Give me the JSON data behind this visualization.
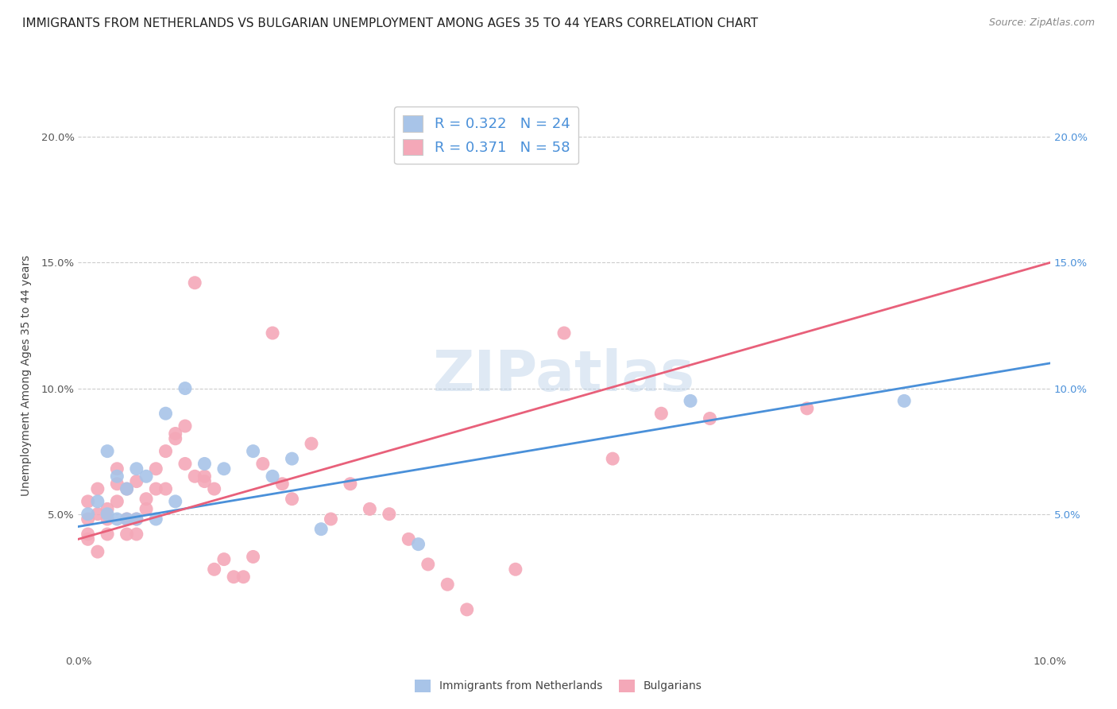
{
  "title": "IMMIGRANTS FROM NETHERLANDS VS BULGARIAN UNEMPLOYMENT AMONG AGES 35 TO 44 YEARS CORRELATION CHART",
  "source": "Source: ZipAtlas.com",
  "ylabel": "Unemployment Among Ages 35 to 44 years",
  "xlim": [
    0.0,
    0.1
  ],
  "ylim": [
    -0.01,
    0.22
  ],
  "plot_ylim": [
    -0.005,
    0.215
  ],
  "xticks": [
    0.0,
    0.02,
    0.04,
    0.06,
    0.08,
    0.1
  ],
  "xticklabels": [
    "0.0%",
    "",
    "",
    "",
    "",
    "10.0%"
  ],
  "yticks_left": [
    0.05,
    0.1,
    0.15,
    0.2
  ],
  "yticklabels_left": [
    "5.0%",
    "10.0%",
    "15.0%",
    "20.0%"
  ],
  "yticks_right": [
    0.05,
    0.1,
    0.15,
    0.2
  ],
  "yticklabels_right": [
    "5.0%",
    "10.0%",
    "15.0%",
    "20.0%"
  ],
  "blue_R": 0.322,
  "blue_N": 24,
  "pink_R": 0.371,
  "pink_N": 58,
  "blue_color": "#a8c4e8",
  "pink_color": "#f4a8b8",
  "blue_line_color": "#4a90d9",
  "pink_line_color": "#e8607a",
  "blue_line_x0": 0.0,
  "blue_line_y0": 0.045,
  "blue_line_x1": 0.1,
  "blue_line_y1": 0.11,
  "pink_line_x0": 0.0,
  "pink_line_y0": 0.04,
  "pink_line_x1": 0.1,
  "pink_line_y1": 0.15,
  "blue_x": [
    0.001,
    0.002,
    0.003,
    0.003,
    0.004,
    0.004,
    0.005,
    0.005,
    0.006,
    0.006,
    0.007,
    0.008,
    0.009,
    0.01,
    0.011,
    0.013,
    0.015,
    0.018,
    0.02,
    0.022,
    0.025,
    0.035,
    0.063,
    0.085
  ],
  "blue_y": [
    0.05,
    0.055,
    0.05,
    0.075,
    0.048,
    0.065,
    0.048,
    0.06,
    0.048,
    0.068,
    0.065,
    0.048,
    0.09,
    0.055,
    0.1,
    0.07,
    0.068,
    0.075,
    0.065,
    0.072,
    0.044,
    0.038,
    0.095,
    0.095
  ],
  "pink_x": [
    0.001,
    0.001,
    0.001,
    0.001,
    0.002,
    0.002,
    0.002,
    0.003,
    0.003,
    0.003,
    0.004,
    0.004,
    0.004,
    0.005,
    0.005,
    0.005,
    0.006,
    0.006,
    0.006,
    0.007,
    0.007,
    0.008,
    0.008,
    0.009,
    0.009,
    0.01,
    0.01,
    0.011,
    0.011,
    0.012,
    0.012,
    0.013,
    0.013,
    0.014,
    0.014,
    0.015,
    0.016,
    0.017,
    0.018,
    0.019,
    0.02,
    0.021,
    0.022,
    0.024,
    0.026,
    0.028,
    0.03,
    0.032,
    0.034,
    0.036,
    0.038,
    0.04,
    0.045,
    0.05,
    0.055,
    0.06,
    0.065,
    0.075
  ],
  "pink_y": [
    0.055,
    0.042,
    0.04,
    0.048,
    0.035,
    0.05,
    0.06,
    0.048,
    0.052,
    0.042,
    0.062,
    0.068,
    0.055,
    0.048,
    0.042,
    0.06,
    0.048,
    0.042,
    0.063,
    0.056,
    0.052,
    0.06,
    0.068,
    0.06,
    0.075,
    0.082,
    0.08,
    0.07,
    0.085,
    0.142,
    0.065,
    0.065,
    0.063,
    0.06,
    0.028,
    0.032,
    0.025,
    0.025,
    0.033,
    0.07,
    0.122,
    0.062,
    0.056,
    0.078,
    0.048,
    0.062,
    0.052,
    0.05,
    0.04,
    0.03,
    0.022,
    0.012,
    0.028,
    0.122,
    0.072,
    0.09,
    0.088,
    0.092
  ],
  "watermark": "ZIPatlas",
  "legend_label_blue": "Immigrants from Netherlands",
  "legend_label_pink": "Bulgarians",
  "title_fontsize": 11,
  "axis_label_fontsize": 10,
  "tick_fontsize": 9.5,
  "legend_fontsize": 13,
  "source_fontsize": 9
}
